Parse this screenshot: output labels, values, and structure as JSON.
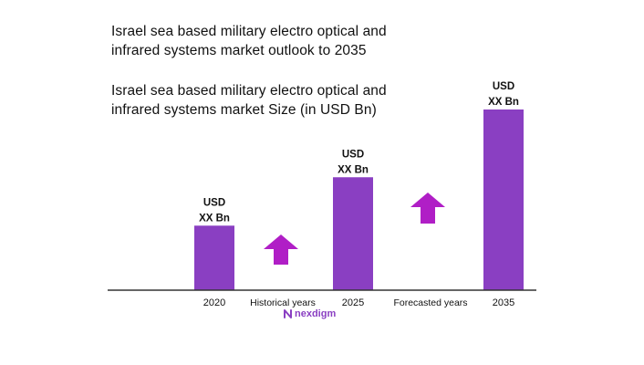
{
  "heading": {
    "line1": "Israel sea based military electro optical and",
    "line2": "infrared systems market outlook to 2035"
  },
  "chart_data": {
    "type": "bar",
    "title": "Israel sea based military electro optical and infrared systems market Size (in USD Bn)",
    "title_lines": [
      "Israel sea based military electro optical and",
      "infrared systems market Size (in USD Bn)"
    ],
    "categories": [
      "2020",
      "2025",
      "2035"
    ],
    "values": [
      1.0,
      1.75,
      2.8
    ],
    "data_labels": [
      [
        "USD",
        "XX Bn"
      ],
      [
        "USD",
        "XX Bn"
      ],
      [
        "USD",
        "XX Bn"
      ]
    ],
    "period_labels": [
      "Historical years",
      "Forecasted years"
    ],
    "bar_color": "#8a3fc2",
    "arrow_color": "#b01ec6",
    "ylim": [
      0,
      2.8
    ],
    "grid": false,
    "legend": "none"
  },
  "logo": {
    "text": "nexdigm",
    "color": "#8a3fc2"
  }
}
